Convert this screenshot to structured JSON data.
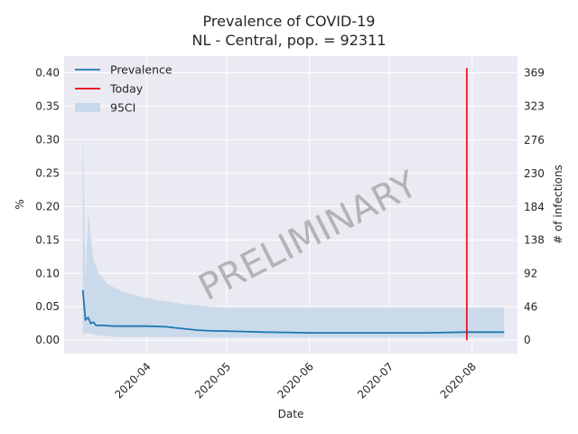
{
  "chart_data": {
    "type": "line",
    "title": "Prevalence of COVID-19",
    "subtitle": "NL - Central, pop. = 92311",
    "xlabel": "Date",
    "ylabel": "%",
    "ylabel_right": "# of infections",
    "watermark": "PRELIMINARY",
    "x_axis": {
      "type": "date",
      "range": [
        "2020-03-01",
        "2020-08-18"
      ],
      "tick_labels": [
        "2020-04",
        "2020-05",
        "2020-06",
        "2020-07",
        "2020-08"
      ],
      "tick_values": [
        "2020-04-01",
        "2020-05-01",
        "2020-06-01",
        "2020-07-01",
        "2020-08-01"
      ]
    },
    "y_axis": {
      "range": [
        -0.02,
        0.425
      ],
      "tick_values": [
        0.0,
        0.05,
        0.1,
        0.15,
        0.2,
        0.25,
        0.3,
        0.35,
        0.4
      ],
      "tick_labels": [
        "0.00",
        "0.05",
        "0.10",
        "0.15",
        "0.20",
        "0.25",
        "0.30",
        "0.35",
        "0.40"
      ]
    },
    "y_axis_right": {
      "tick_labels": [
        "0",
        "46",
        "92",
        "138",
        "184",
        "230",
        "276",
        "323",
        "369"
      ],
      "tick_values_percent": [
        0.0,
        0.0498,
        0.0997,
        0.1495,
        0.1993,
        0.2492,
        0.299,
        0.3499,
        0.3997
      ]
    },
    "legend": {
      "placement": "top-left",
      "entries": [
        {
          "label": "Prevalence",
          "color": "#1f77b4",
          "kind": "line"
        },
        {
          "label": "Today",
          "color": "#e8000b",
          "kind": "line"
        },
        {
          "label": "95CI",
          "color": "#c8d8ea",
          "kind": "patch"
        }
      ]
    },
    "grid": true,
    "colors": {
      "background": "#eaeaf2",
      "grid": "#ffffff",
      "prevalence": "#1f77b4",
      "today": "#e8000b",
      "ci": "#c8d8ea"
    },
    "series": [
      {
        "name": "Prevalence",
        "x": [
          "2020-03-08",
          "2020-03-09",
          "2020-03-10",
          "2020-03-11",
          "2020-03-12",
          "2020-03-13",
          "2020-03-15",
          "2020-03-20",
          "2020-03-25",
          "2020-04-01",
          "2020-04-08",
          "2020-04-15",
          "2020-04-20",
          "2020-04-25",
          "2020-05-01",
          "2020-05-15",
          "2020-06-01",
          "2020-06-15",
          "2020-07-01",
          "2020-07-15",
          "2020-07-30",
          "2020-08-13"
        ],
        "values": [
          0.075,
          0.03,
          0.034,
          0.025,
          0.027,
          0.022,
          0.022,
          0.021,
          0.021,
          0.021,
          0.02,
          0.017,
          0.015,
          0.014,
          0.0135,
          0.012,
          0.011,
          0.011,
          0.011,
          0.011,
          0.012,
          0.012
        ]
      },
      {
        "name": "95CI",
        "x": [
          "2020-03-08",
          "2020-03-09",
          "2020-03-10",
          "2020-03-12",
          "2020-03-14",
          "2020-03-17",
          "2020-03-20",
          "2020-03-25",
          "2020-04-01",
          "2020-04-08",
          "2020-04-15",
          "2020-04-25",
          "2020-05-01",
          "2020-06-01",
          "2020-07-01",
          "2020-08-01",
          "2020-08-13"
        ],
        "upper": [
          0.33,
          0.09,
          0.19,
          0.12,
          0.1,
          0.085,
          0.078,
          0.07,
          0.063,
          0.058,
          0.054,
          0.05,
          0.049,
          0.049,
          0.049,
          0.049,
          0.049
        ],
        "lower": [
          0.008,
          0.01,
          0.01,
          0.009,
          0.007,
          0.006,
          0.005,
          0.005,
          0.005,
          0.005,
          0.005,
          0.004,
          0.004,
          0.004,
          0.004,
          0.004,
          0.004
        ]
      }
    ],
    "today": {
      "x": "2020-07-30",
      "y_from": 0.0,
      "y_to": 0.407
    }
  }
}
